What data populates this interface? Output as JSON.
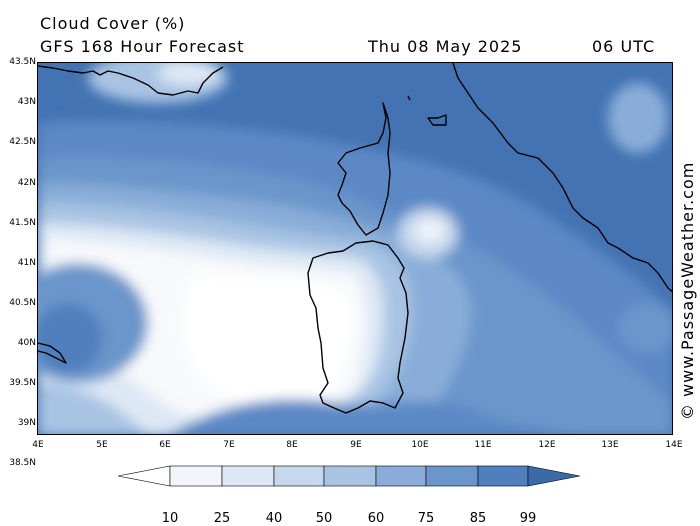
{
  "header": {
    "title": "Cloud Cover (%)",
    "subtitle": "GFS 168 Hour Forecast",
    "date": "Thu 08 May 2025",
    "time": "06 UTC"
  },
  "axes": {
    "lat_labels": [
      "43.5N",
      "43N",
      "42.5N",
      "42N",
      "41.5N",
      "41N",
      "40.5N",
      "40N",
      "39.5N",
      "39N",
      "38.5N"
    ],
    "lon_labels": [
      "4E",
      "5E",
      "6E",
      "7E",
      "8E",
      "9E",
      "10E",
      "11E",
      "12E",
      "13E",
      "14E"
    ]
  },
  "credit": "© www.PassageWeather.com",
  "legend": {
    "levels": [
      "10",
      "25",
      "40",
      "50",
      "60",
      "75",
      "85",
      "99"
    ],
    "colors": [
      "#ffffff",
      "#f2f6fb",
      "#dde8f4",
      "#c6d8ec",
      "#a9c4e3",
      "#89add8",
      "#6a96cb",
      "#4f7fbd",
      "#3b6aa8"
    ]
  },
  "map": {
    "land_outline_color": "#000000",
    "description_colors": {
      "sea_overcast": "#3b6aa8",
      "clear": "#ffffff"
    }
  }
}
